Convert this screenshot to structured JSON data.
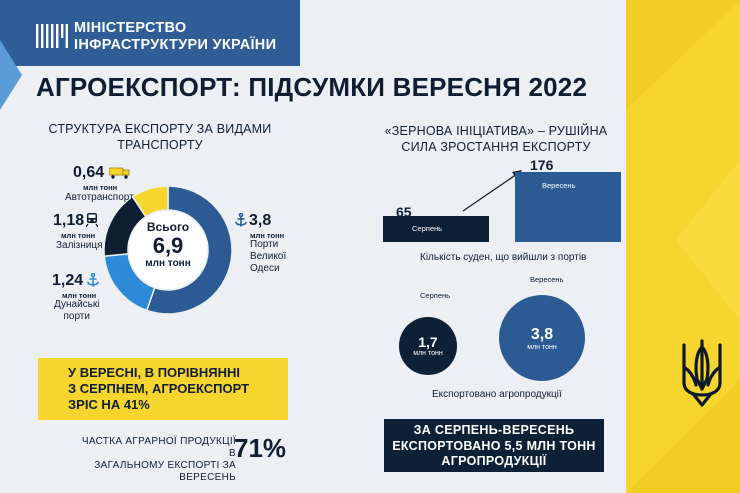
{
  "header": {
    "ministry_line1": "МІНІСТЕРСТВО",
    "ministry_line2": "ІНФРАСТРУКТУРИ УКРАЇНИ",
    "title": "АГРОЕКСПОРТ: ПІДСУМКИ ВЕРЕСНЯ 2022"
  },
  "colors": {
    "brand_blue": "#2f5d96",
    "yellow": "#f7d52f",
    "dark_navy": "#0d2136",
    "ports_blue": "#2b5b92",
    "danube_blue": "#2c8ad8",
    "rail_dark": "#0f1e33"
  },
  "icons": {
    "truck": "truck-icon",
    "train": "train-icon",
    "anchor": "anchor-icon",
    "emblem": "trident-icon"
  },
  "transport_structure": {
    "heading_line1": "СТРУКТУРА ЕКСПОРТУ ЗА ВИДАМИ",
    "heading_line2": "ТРАНСПОРТУ",
    "center_label": "Всього",
    "center_value": "6,9",
    "center_unit": "млн тонн",
    "unit_label": "млн тонн",
    "segments": [
      {
        "value": "3,8",
        "value_num": 3.8,
        "label_line1": "Порти",
        "label_line2": "Великої",
        "label_line3": "Одеси"
      },
      {
        "value": "1,24",
        "value_num": 1.24,
        "label_line1": "Дунайські",
        "label_line2": "порти"
      },
      {
        "value": "1,18",
        "value_num": 1.18,
        "label_line1": "Залізниця"
      },
      {
        "value": "0,64",
        "value_num": 0.64,
        "label_line1": "Автотранспорт"
      }
    ]
  },
  "growth": {
    "line1": "У ВЕРЕСНІ, В ПОРІВНЯННІ",
    "line2": "З СЕРПНЕМ, АГРОЕКСПОРТ",
    "line3": "ЗРІС НА 41%"
  },
  "agri_share": {
    "text_line1": "ЧАСТКА АГРАРНОЇ ПРОДУКЦІЇ В",
    "text_line2": "ЗАГАЛЬНОМУ ЕКСПОРТІ ЗА ВЕРЕСЕНЬ",
    "value": "71%"
  },
  "grain_initiative": {
    "heading_line1": "«ЗЕРНОВА ІНІЦІАТИВА» – РУШІЙНА",
    "heading_line2": "СИЛА ЗРОСТАННЯ ЕКСПОРТУ",
    "ships_caption": "Кількість суден, що вийшли з портів",
    "ships": [
      {
        "month": "Серпень",
        "value": "65",
        "value_num": 65
      },
      {
        "month": "Вересень",
        "value": "176",
        "value_num": 176
      }
    ],
    "export_caption": "Експортовано агропродукції",
    "exported": [
      {
        "month": "Серпень",
        "value": "1,7",
        "value_num": 1.7,
        "unit": "млн тонн"
      },
      {
        "month": "Вересень",
        "value": "3,8",
        "value_num": 3.8,
        "unit": "млн тонн"
      }
    ]
  },
  "total": {
    "line1": "ЗА СЕРПЕНЬ-ВЕРЕСЕНЬ",
    "line2": "ЕКСПОРТОВАНО 5,5 МЛН ТОНН",
    "line3": "АГРОПРОДУКЦІЇ"
  }
}
